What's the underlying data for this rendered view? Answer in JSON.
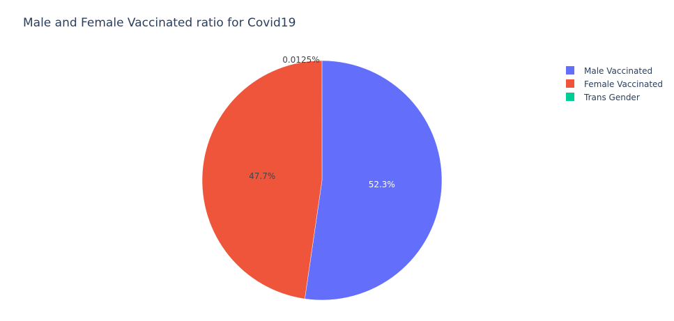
{
  "chart_data": {
    "type": "pie",
    "title": "Male and Female Vaccinated ratio for Covid19",
    "categories": [
      "Male Vaccinated",
      "Female Vaccinated",
      "Trans Gender"
    ],
    "values": [
      52.3,
      47.7,
      0.0125
    ],
    "percent_labels": [
      "52.3%",
      "47.7%",
      "0.0125%"
    ],
    "colors": [
      "#636efa",
      "#ef553b",
      "#00cc96"
    ],
    "label_colors": [
      "#ffffff",
      "#444444",
      "#444444"
    ],
    "legend": {
      "placement": "top-right",
      "entries": [
        "Male Vaccinated",
        "Female Vaccinated",
        "Trans Gender"
      ]
    },
    "direction": "clockwise",
    "start_angle": "top"
  }
}
